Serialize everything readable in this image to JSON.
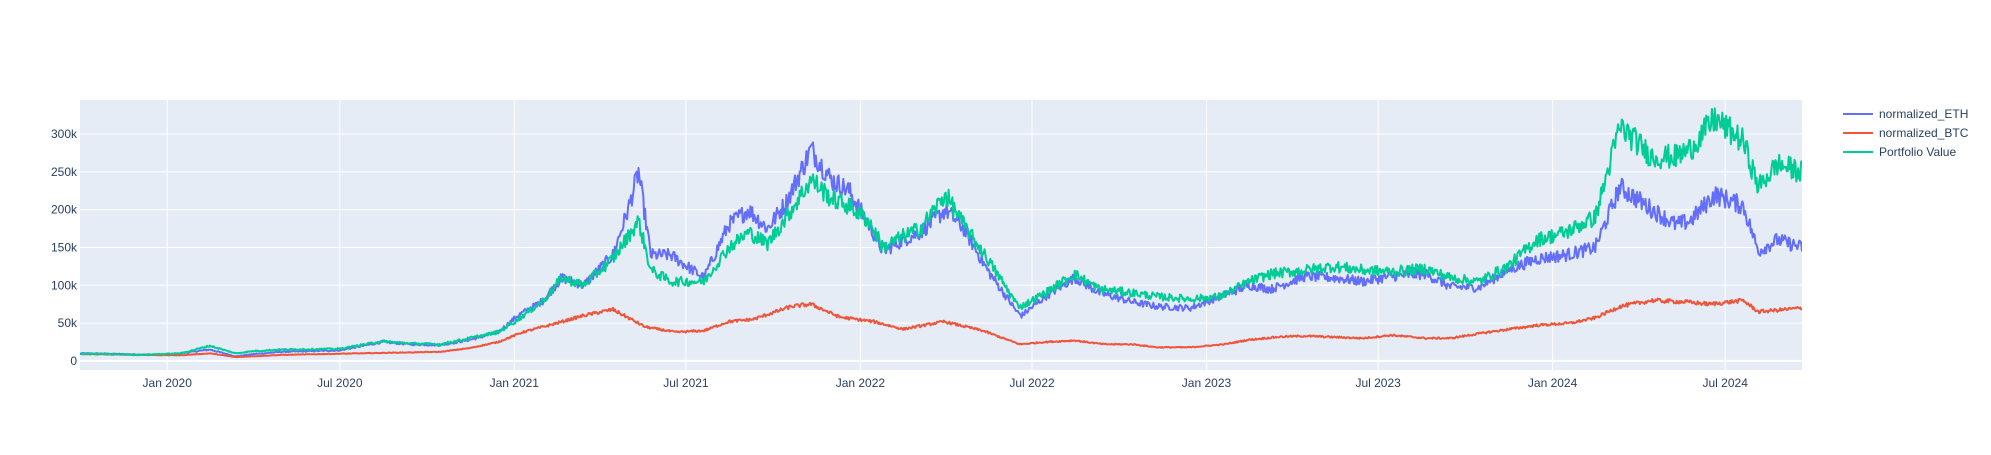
{
  "chart_data": {
    "type": "line",
    "title": "",
    "xlabel": "",
    "ylabel": "",
    "x_range": [
      "2019-10-01",
      "2024-09-20"
    ],
    "ylim": [
      -12000,
      345000
    ],
    "grid": true,
    "legend_position": "top-right",
    "x_ticks": [
      {
        "date": "2020-01-01",
        "label": "Jan 2020"
      },
      {
        "date": "2020-07-01",
        "label": "Jul 2020"
      },
      {
        "date": "2021-01-01",
        "label": "Jan 2021"
      },
      {
        "date": "2021-07-01",
        "label": "Jul 2021"
      },
      {
        "date": "2022-01-01",
        "label": "Jan 2022"
      },
      {
        "date": "2022-07-01",
        "label": "Jul 2022"
      },
      {
        "date": "2023-01-01",
        "label": "Jan 2023"
      },
      {
        "date": "2023-07-01",
        "label": "Jul 2023"
      },
      {
        "date": "2024-01-01",
        "label": "Jan 2024"
      },
      {
        "date": "2024-07-01",
        "label": "Jul 2024"
      }
    ],
    "y_ticks": [
      {
        "value": 0,
        "label": "0"
      },
      {
        "value": 50000,
        "label": "50k"
      },
      {
        "value": 100000,
        "label": "100k"
      },
      {
        "value": 150000,
        "label": "150k"
      },
      {
        "value": 200000,
        "label": "200k"
      },
      {
        "value": 250000,
        "label": "250k"
      },
      {
        "value": 300000,
        "label": "300k"
      }
    ],
    "series": [
      {
        "name": "normalized_ETH",
        "color": "#636efa",
        "x": [
          "2019-10-01",
          "2019-11-01",
          "2019-12-01",
          "2020-01-01",
          "2020-02-15",
          "2020-03-13",
          "2020-04-01",
          "2020-05-01",
          "2020-06-01",
          "2020-07-01",
          "2020-08-15",
          "2020-09-15",
          "2020-10-15",
          "2020-11-15",
          "2020-12-15",
          "2021-01-05",
          "2021-02-01",
          "2021-02-20",
          "2021-03-15",
          "2021-04-15",
          "2021-05-01",
          "2021-05-12",
          "2021-05-25",
          "2021-06-15",
          "2021-07-20",
          "2021-08-15",
          "2021-09-05",
          "2021-09-25",
          "2021-10-15",
          "2021-11-10",
          "2021-12-01",
          "2021-12-20",
          "2022-01-10",
          "2022-01-25",
          "2022-02-15",
          "2022-03-05",
          "2022-04-01",
          "2022-04-20",
          "2022-05-15",
          "2022-06-15",
          "2022-06-20",
          "2022-07-15",
          "2022-08-15",
          "2022-09-10",
          "2022-10-15",
          "2022-11-10",
          "2022-12-15",
          "2023-01-15",
          "2023-02-15",
          "2023-03-10",
          "2023-04-15",
          "2023-05-15",
          "2023-06-15",
          "2023-07-15",
          "2023-08-20",
          "2023-09-15",
          "2023-10-15",
          "2023-11-15",
          "2023-12-15",
          "2024-01-15",
          "2024-02-15",
          "2024-03-12",
          "2024-04-15",
          "2024-05-10",
          "2024-05-25",
          "2024-06-20",
          "2024-07-20",
          "2024-08-05",
          "2024-08-25",
          "2024-09-20"
        ],
        "values": [
          10000,
          9500,
          8500,
          8000,
          15000,
          6000,
          9000,
          12000,
          13000,
          14000,
          25000,
          22000,
          21000,
          28000,
          38000,
          60000,
          80000,
          110000,
          100000,
          140000,
          200000,
          250000,
          140000,
          140000,
          110000,
          180000,
          200000,
          175000,
          210000,
          280000,
          240000,
          225000,
          180000,
          145000,
          160000,
          170000,
          200000,
          175000,
          120000,
          65000,
          60000,
          85000,
          110000,
          90000,
          78000,
          72000,
          70000,
          85000,
          100000,
          95000,
          112000,
          110000,
          105000,
          112000,
          115000,
          98000,
          97000,
          120000,
          135000,
          140000,
          150000,
          230000,
          200000,
          180000,
          185000,
          220000,
          205000,
          145000,
          160000,
          150000
        ]
      },
      {
        "name": "normalized_BTC",
        "color": "#ef553b",
        "x": [
          "2019-10-01",
          "2019-12-01",
          "2020-01-15",
          "2020-02-15",
          "2020-03-13",
          "2020-05-01",
          "2020-07-01",
          "2020-09-01",
          "2020-10-15",
          "2020-11-15",
          "2020-12-15",
          "2021-01-10",
          "2021-02-15",
          "2021-03-15",
          "2021-04-15",
          "2021-05-19",
          "2021-06-20",
          "2021-07-20",
          "2021-08-15",
          "2021-09-10",
          "2021-10-20",
          "2021-11-10",
          "2021-12-10",
          "2022-01-15",
          "2022-02-15",
          "2022-03-30",
          "2022-05-10",
          "2022-06-18",
          "2022-07-15",
          "2022-08-15",
          "2022-09-15",
          "2022-10-15",
          "2022-11-10",
          "2022-12-15",
          "2023-01-20",
          "2023-02-15",
          "2023-03-20",
          "2023-04-15",
          "2023-06-15",
          "2023-07-15",
          "2023-08-20",
          "2023-09-15",
          "2023-10-25",
          "2023-12-15",
          "2024-01-20",
          "2024-02-15",
          "2024-03-12",
          "2024-04-15",
          "2024-05-20",
          "2024-06-15",
          "2024-07-20",
          "2024-08-05",
          "2024-09-20"
        ],
        "values": [
          9000,
          8000,
          7500,
          10000,
          5000,
          8000,
          9500,
          11000,
          12000,
          17000,
          25000,
          38000,
          50000,
          60000,
          68000,
          45000,
          38000,
          40000,
          52000,
          55000,
          72000,
          75000,
          58000,
          52000,
          42000,
          52000,
          40000,
          22000,
          25000,
          27000,
          22000,
          22000,
          18000,
          18000,
          22000,
          28000,
          32000,
          33000,
          30000,
          34000,
          30000,
          30000,
          38000,
          47000,
          50000,
          57000,
          72000,
          80000,
          78000,
          75000,
          80000,
          65000,
          70000
        ]
      },
      {
        "name": "Portfolio Value",
        "color": "#00cc96",
        "x": [
          "2019-10-01",
          "2019-11-01",
          "2019-12-01",
          "2020-01-15",
          "2020-02-15",
          "2020-03-13",
          "2020-04-01",
          "2020-05-01",
          "2020-07-01",
          "2020-08-15",
          "2020-09-15",
          "2020-10-15",
          "2020-11-15",
          "2020-12-15",
          "2021-01-05",
          "2021-02-01",
          "2021-02-20",
          "2021-03-15",
          "2021-04-15",
          "2021-05-12",
          "2021-05-25",
          "2021-06-15",
          "2021-07-20",
          "2021-08-15",
          "2021-09-05",
          "2021-09-25",
          "2021-10-15",
          "2021-11-10",
          "2021-12-01",
          "2021-12-20",
          "2022-01-10",
          "2022-01-25",
          "2022-02-15",
          "2022-03-05",
          "2022-04-01",
          "2022-04-20",
          "2022-05-15",
          "2022-06-15",
          "2022-06-20",
          "2022-07-15",
          "2022-08-15",
          "2022-09-10",
          "2022-10-15",
          "2022-11-10",
          "2022-12-15",
          "2023-01-15",
          "2023-02-15",
          "2023-03-10",
          "2023-04-15",
          "2023-05-15",
          "2023-06-15",
          "2023-07-15",
          "2023-08-20",
          "2023-09-15",
          "2023-10-15",
          "2023-11-15",
          "2023-12-15",
          "2024-01-15",
          "2024-02-15",
          "2024-03-12",
          "2024-04-15",
          "2024-05-10",
          "2024-05-25",
          "2024-06-20",
          "2024-07-20",
          "2024-08-05",
          "2024-08-25",
          "2024-09-20"
        ],
        "values": [
          9500,
          9000,
          8000,
          10000,
          20000,
          10000,
          13000,
          15000,
          16000,
          26000,
          23000,
          22000,
          30000,
          38000,
          55000,
          80000,
          110000,
          100000,
          135000,
          185000,
          120000,
          105000,
          105000,
          150000,
          170000,
          155000,
          190000,
          240000,
          215000,
          205000,
          185000,
          150000,
          165000,
          175000,
          220000,
          180000,
          135000,
          75000,
          72000,
          90000,
          115000,
          95000,
          90000,
          85000,
          82000,
          85000,
          105000,
          115000,
          120000,
          125000,
          120000,
          118000,
          122000,
          110000,
          105000,
          125000,
          160000,
          170000,
          190000,
          310000,
          270000,
          270000,
          280000,
          320000,
          290000,
          230000,
          260000,
          250000
        ]
      }
    ]
  }
}
